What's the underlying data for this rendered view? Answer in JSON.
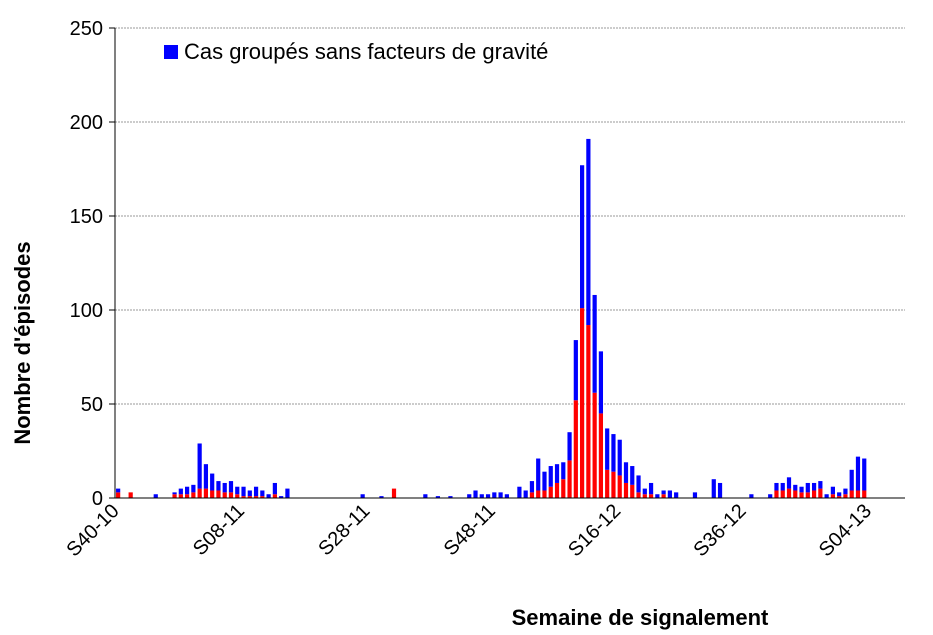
{
  "chart_data": {
    "type": "stacked_bar",
    "y_label": "Nombre d'épisodes",
    "x_label": "Semaine de signalement",
    "categories": [
      "S40-10",
      null,
      null,
      null,
      null,
      null,
      null,
      null,
      null,
      null,
      null,
      null,
      null,
      null,
      null,
      null,
      null,
      null,
      null,
      null,
      "S08-11",
      null,
      null,
      null,
      null,
      null,
      null,
      null,
      null,
      null,
      null,
      null,
      null,
      null,
      null,
      null,
      null,
      null,
      null,
      null,
      "S28-11",
      null,
      null,
      null,
      null,
      null,
      null,
      null,
      null,
      null,
      null,
      null,
      null,
      null,
      null,
      null,
      null,
      null,
      null,
      null,
      "S48-11",
      null,
      null,
      null,
      null,
      null,
      null,
      null,
      null,
      null,
      null,
      null,
      null,
      null,
      null,
      null,
      null,
      null,
      null,
      null,
      "S16-12",
      null,
      null,
      null,
      null,
      null,
      null,
      null,
      null,
      null,
      null,
      null,
      null,
      null,
      null,
      null,
      null,
      null,
      null,
      null,
      "S36-12",
      null,
      null,
      null,
      null,
      null,
      null,
      null,
      null,
      null,
      null,
      null,
      null,
      null,
      null,
      null,
      null,
      null,
      null,
      null,
      "S04-13",
      null,
      null,
      null,
      null,
      null
    ],
    "series": [
      {
        "color": "#ff0000",
        "values": [
          3,
          0,
          3,
          0,
          0,
          0,
          0,
          0,
          0,
          2,
          2,
          2,
          3,
          5,
          5,
          4,
          4,
          3,
          3,
          2,
          1,
          1,
          1,
          1,
          0,
          2,
          0,
          0,
          0,
          0,
          0,
          0,
          0,
          0,
          0,
          0,
          0,
          0,
          0,
          0,
          0,
          0,
          0,
          0,
          5,
          0,
          0,
          0,
          0,
          0,
          0,
          0,
          0,
          0,
          0,
          0,
          0,
          0,
          0,
          0,
          0,
          0,
          0,
          0,
          0,
          0,
          3,
          4,
          4,
          6,
          8,
          10,
          20,
          52,
          101,
          92,
          56,
          45,
          15,
          14,
          12,
          8,
          7,
          3,
          2,
          2,
          0,
          2,
          0,
          0,
          0,
          0,
          0,
          0,
          0,
          0,
          0,
          0,
          0,
          0,
          0,
          0,
          0,
          0,
          0,
          4,
          4,
          5,
          4,
          3,
          3,
          4,
          5,
          0,
          2,
          1,
          2,
          4,
          4,
          4,
          0,
          0,
          0,
          0,
          0,
          0
        ]
      },
      {
        "name": "Cas groupés sans facteurs de gravité",
        "color": "#0000ff",
        "values": [
          2,
          0,
          0,
          0,
          0,
          0,
          2,
          0,
          0,
          1,
          3,
          4,
          4,
          24,
          13,
          9,
          5,
          5,
          6,
          4,
          5,
          3,
          5,
          3,
          2,
          6,
          1,
          5,
          0,
          0,
          0,
          0,
          0,
          0,
          0,
          0,
          0,
          0,
          0,
          2,
          0,
          0,
          1,
          0,
          0,
          0,
          0,
          0,
          0,
          2,
          0,
          1,
          0,
          1,
          0,
          0,
          2,
          4,
          2,
          2,
          3,
          3,
          2,
          0,
          6,
          4,
          6,
          17,
          10,
          11,
          10,
          9,
          15,
          32,
          76,
          99,
          52,
          33,
          22,
          20,
          19,
          11,
          10,
          9,
          3,
          6,
          2,
          2,
          4,
          3,
          0,
          0,
          3,
          0,
          0,
          10,
          8,
          0,
          0,
          0,
          0,
          2,
          0,
          0,
          2,
          4,
          4,
          6,
          3,
          3,
          5,
          4,
          4,
          2,
          4,
          2,
          3,
          11,
          18,
          17,
          0,
          0,
          0,
          0,
          0,
          0
        ]
      }
    ],
    "ylim": [
      0,
      250
    ],
    "yticks": [
      0,
      50,
      100,
      150,
      200,
      250
    ],
    "grid": true
  }
}
